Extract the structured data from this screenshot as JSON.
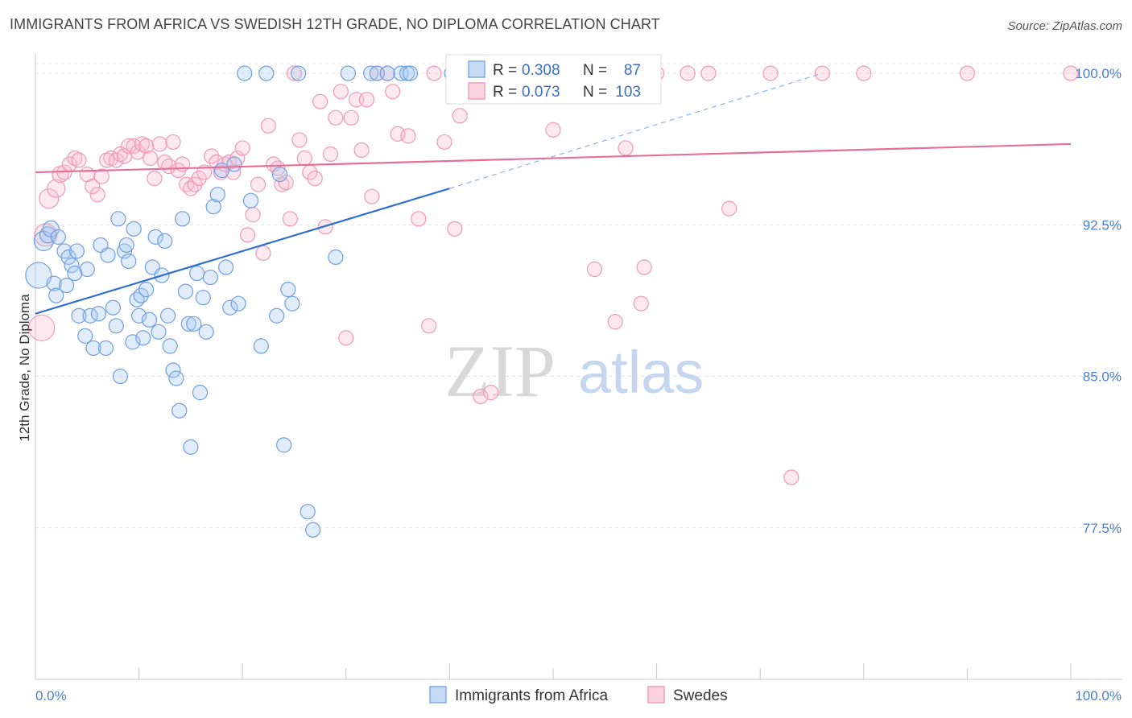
{
  "header": {
    "title": "IMMIGRANTS FROM AFRICA VS SWEDISH 12TH GRADE, NO DIPLOMA CORRELATION CHART",
    "source": "Source: ZipAtlas.com"
  },
  "watermark": {
    "zip": "ZIP",
    "atlas": "atlas"
  },
  "legend": {
    "r_label": "R =",
    "n_label": "N =",
    "series": [
      {
        "name": "Immigrants from Africa",
        "r": "0.308",
        "n": "87",
        "color": "#7aaae8"
      },
      {
        "name": "Swedes",
        "r": "0.073",
        "n": "103",
        "color": "#f0a0bc"
      }
    ]
  },
  "chart_data": {
    "type": "scatter",
    "xlabel": "",
    "ylabel": "12th Grade, No Diploma",
    "x_tick_labels": [
      "0.0%",
      "100.0%"
    ],
    "y_tick_labels": [
      "100.0%",
      "92.5%",
      "85.0%",
      "77.5%"
    ],
    "y_ticks": [
      100.0,
      92.5,
      85.0,
      77.5
    ],
    "xlim": [
      0,
      100
    ],
    "ylim": [
      70.0,
      101.0
    ],
    "grid": true,
    "legend_position": "top-center",
    "series": [
      {
        "name": "Immigrants from Africa",
        "color": "#7aaae8",
        "trend": {
          "x0": 0,
          "y0": 88.1,
          "x1": 40,
          "y1": 94.3,
          "dash_to_x": 76,
          "dash_to_y": 100.0
        },
        "points": [
          [
            0.3,
            90.0,
            16
          ],
          [
            0.8,
            91.7,
            12
          ],
          [
            1.2,
            92.0,
            10
          ],
          [
            1.5,
            92.3,
            10
          ],
          [
            1.8,
            89.6,
            9
          ],
          [
            2.0,
            89.0,
            9
          ],
          [
            2.2,
            91.9,
            9
          ],
          [
            2.8,
            91.2,
            9
          ],
          [
            3.0,
            89.5,
            9
          ],
          [
            3.2,
            90.9,
            9
          ],
          [
            3.5,
            90.5,
            9
          ],
          [
            3.8,
            90.1,
            9
          ],
          [
            4.0,
            91.2,
            9
          ],
          [
            4.2,
            88.0,
            9
          ],
          [
            4.8,
            87.0,
            9
          ],
          [
            5.0,
            90.3,
            9
          ],
          [
            5.3,
            88.0,
            9
          ],
          [
            5.6,
            86.4,
            9
          ],
          [
            6.1,
            88.1,
            9
          ],
          [
            6.3,
            91.5,
            9
          ],
          [
            6.8,
            86.4,
            9
          ],
          [
            7.0,
            91.0,
            9
          ],
          [
            7.5,
            88.4,
            9
          ],
          [
            7.8,
            87.5,
            9
          ],
          [
            8.0,
            92.8,
            9
          ],
          [
            8.2,
            85.0,
            9
          ],
          [
            8.6,
            91.2,
            9
          ],
          [
            8.8,
            91.5,
            9
          ],
          [
            9.0,
            90.7,
            9
          ],
          [
            9.4,
            86.7,
            9
          ],
          [
            9.5,
            92.3,
            9
          ],
          [
            9.8,
            88.8,
            9
          ],
          [
            10.0,
            88.0,
            9
          ],
          [
            10.2,
            89.0,
            9
          ],
          [
            10.4,
            86.9,
            9
          ],
          [
            10.7,
            89.3,
            9
          ],
          [
            11.0,
            87.8,
            9
          ],
          [
            11.3,
            90.4,
            9
          ],
          [
            11.6,
            91.9,
            9
          ],
          [
            11.9,
            87.2,
            9
          ],
          [
            12.2,
            90.0,
            9
          ],
          [
            12.5,
            91.7,
            9
          ],
          [
            12.8,
            88.0,
            9
          ],
          [
            13.0,
            86.5,
            9
          ],
          [
            13.3,
            85.3,
            9
          ],
          [
            13.6,
            84.9,
            9
          ],
          [
            13.9,
            83.3,
            9
          ],
          [
            14.2,
            92.8,
            9
          ],
          [
            14.5,
            89.2,
            9
          ],
          [
            14.8,
            87.6,
            9
          ],
          [
            15.0,
            81.5,
            9
          ],
          [
            15.3,
            87.6,
            9
          ],
          [
            15.6,
            90.1,
            9
          ],
          [
            15.9,
            84.2,
            9
          ],
          [
            16.2,
            88.9,
            9
          ],
          [
            16.5,
            87.2,
            9
          ],
          [
            16.9,
            89.9,
            9
          ],
          [
            17.2,
            93.4,
            9
          ],
          [
            17.6,
            94.0,
            9
          ],
          [
            18.0,
            95.2,
            9
          ],
          [
            18.4,
            90.4,
            9
          ],
          [
            18.8,
            88.4,
            9
          ],
          [
            19.2,
            95.5,
            9
          ],
          [
            19.6,
            88.6,
            9
          ],
          [
            20.2,
            100.0,
            9
          ],
          [
            20.8,
            93.7,
            9
          ],
          [
            21.8,
            86.5,
            9
          ],
          [
            22.3,
            100.0,
            9
          ],
          [
            23.3,
            88.0,
            9
          ],
          [
            23.6,
            95.0,
            9
          ],
          [
            24.0,
            81.6,
            9
          ],
          [
            24.4,
            89.3,
            9
          ],
          [
            24.8,
            88.6,
            9
          ],
          [
            25.4,
            100.0,
            9
          ],
          [
            26.3,
            78.3,
            9
          ],
          [
            26.8,
            77.4,
            9
          ],
          [
            29.0,
            90.9,
            9
          ],
          [
            30.2,
            100.0,
            9
          ],
          [
            32.4,
            100.0,
            9
          ],
          [
            33.0,
            100.0,
            9
          ],
          [
            34.0,
            100.0,
            9
          ],
          [
            35.3,
            100.0,
            9
          ],
          [
            35.9,
            100.0,
            9
          ],
          [
            36.2,
            100.0,
            9
          ],
          [
            40.2,
            100.0,
            9
          ],
          [
            44.5,
            100.0,
            9
          ],
          [
            45.0,
            100.0,
            9
          ]
        ]
      },
      {
        "name": "Swedes",
        "color": "#f0a0bc",
        "trend": {
          "x0": 0,
          "y0": 95.1,
          "x1": 100,
          "y1": 96.5
        },
        "points": [
          [
            0.6,
            87.4,
            16
          ],
          [
            1.0,
            92.0,
            14
          ],
          [
            1.3,
            93.8,
            12
          ],
          [
            2.0,
            94.3,
            11
          ],
          [
            2.4,
            95.0,
            10
          ],
          [
            2.8,
            95.1,
            9
          ],
          [
            3.3,
            95.5,
            9
          ],
          [
            3.8,
            95.8,
            9
          ],
          [
            4.2,
            95.7,
            9
          ],
          [
            5.0,
            95.0,
            9
          ],
          [
            5.5,
            94.4,
            9
          ],
          [
            6.0,
            94.0,
            9
          ],
          [
            6.4,
            94.9,
            9
          ],
          [
            6.9,
            95.7,
            9
          ],
          [
            7.3,
            95.8,
            9
          ],
          [
            7.8,
            95.7,
            9
          ],
          [
            8.2,
            96.0,
            9
          ],
          [
            8.6,
            95.9,
            9
          ],
          [
            9.0,
            96.4,
            9
          ],
          [
            9.5,
            96.4,
            9
          ],
          [
            9.9,
            96.1,
            9
          ],
          [
            10.3,
            96.5,
            9
          ],
          [
            10.7,
            96.4,
            9
          ],
          [
            11.1,
            95.8,
            9
          ],
          [
            11.5,
            94.8,
            9
          ],
          [
            12.0,
            96.5,
            9
          ],
          [
            12.5,
            95.6,
            9
          ],
          [
            12.9,
            95.4,
            9
          ],
          [
            13.3,
            96.6,
            9
          ],
          [
            13.8,
            95.2,
            9
          ],
          [
            14.2,
            95.5,
            9
          ],
          [
            14.6,
            94.5,
            9
          ],
          [
            15.0,
            94.3,
            9
          ],
          [
            15.4,
            94.5,
            9
          ],
          [
            15.8,
            94.8,
            9
          ],
          [
            16.3,
            95.1,
            9
          ],
          [
            17.0,
            95.9,
            9
          ],
          [
            17.5,
            95.6,
            9
          ],
          [
            17.9,
            95.1,
            9
          ],
          [
            18.3,
            95.5,
            9
          ],
          [
            18.7,
            95.6,
            9
          ],
          [
            19.1,
            95.1,
            9
          ],
          [
            19.5,
            95.8,
            9
          ],
          [
            20.0,
            96.3,
            9
          ],
          [
            20.5,
            92.0,
            9
          ],
          [
            21.0,
            93.0,
            9
          ],
          [
            21.5,
            94.5,
            9
          ],
          [
            22.0,
            91.1,
            9
          ],
          [
            22.5,
            97.4,
            9
          ],
          [
            23.0,
            95.5,
            9
          ],
          [
            23.4,
            95.3,
            9
          ],
          [
            23.8,
            94.5,
            9
          ],
          [
            24.2,
            94.6,
            9
          ],
          [
            24.6,
            92.8,
            9
          ],
          [
            25.0,
            100.0,
            9
          ],
          [
            25.5,
            96.7,
            9
          ],
          [
            26.0,
            95.8,
            9
          ],
          [
            26.5,
            95.1,
            9
          ],
          [
            27.0,
            94.8,
            9
          ],
          [
            27.5,
            98.6,
            9
          ],
          [
            28.0,
            92.4,
            9
          ],
          [
            28.5,
            96.0,
            9
          ],
          [
            29.0,
            97.8,
            9
          ],
          [
            29.5,
            99.1,
            9
          ],
          [
            30.0,
            86.9,
            9
          ],
          [
            30.5,
            97.8,
            9
          ],
          [
            31.0,
            98.7,
            9
          ],
          [
            31.5,
            96.2,
            9
          ],
          [
            32.0,
            98.7,
            9
          ],
          [
            32.5,
            93.9,
            9
          ],
          [
            33.0,
            100.0,
            9
          ],
          [
            34.0,
            100.0,
            9
          ],
          [
            34.5,
            99.1,
            9
          ],
          [
            35.0,
            97.0,
            9
          ],
          [
            36.0,
            96.9,
            9
          ],
          [
            37.0,
            92.8,
            9
          ],
          [
            38.0,
            87.5,
            9
          ],
          [
            38.5,
            100.0,
            9
          ],
          [
            39.5,
            96.6,
            9
          ],
          [
            40.5,
            92.3,
            9
          ],
          [
            41.0,
            97.9,
            9
          ],
          [
            42.0,
            100.0,
            9
          ],
          [
            43.0,
            84.0,
            9
          ],
          [
            44.0,
            84.2,
            9
          ],
          [
            45.0,
            100.0,
            9
          ],
          [
            47.0,
            100.0,
            9
          ],
          [
            50.0,
            97.2,
            9
          ],
          [
            54.0,
            90.3,
            9
          ],
          [
            56.0,
            87.7,
            9
          ],
          [
            57.0,
            96.3,
            9
          ],
          [
            58.0,
            100.0,
            9
          ],
          [
            58.5,
            88.6,
            9
          ],
          [
            58.8,
            90.4,
            9
          ],
          [
            60.0,
            100.0,
            9
          ],
          [
            63.0,
            100.0,
            9
          ],
          [
            65.0,
            100.0,
            9
          ],
          [
            67.0,
            93.3,
            9
          ],
          [
            71.0,
            100.0,
            9
          ],
          [
            73.0,
            80.0,
            9
          ],
          [
            76.0,
            100.0,
            9
          ],
          [
            80.0,
            100.0,
            9
          ],
          [
            90.0,
            100.0,
            9
          ],
          [
            100.0,
            100.0,
            9
          ]
        ]
      }
    ]
  }
}
